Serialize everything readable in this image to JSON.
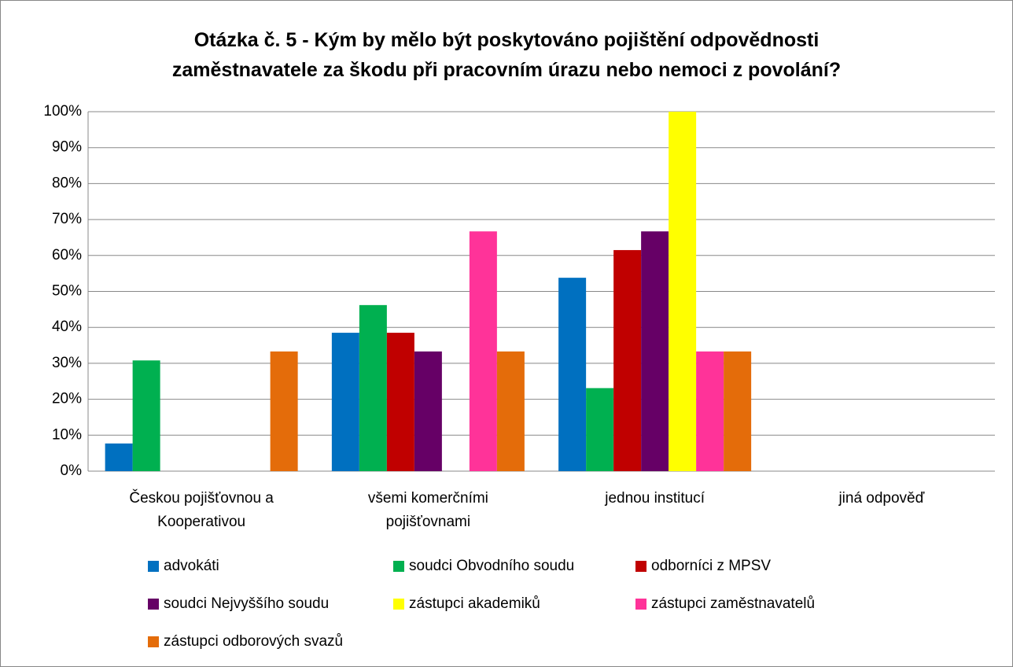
{
  "chart_data": {
    "type": "bar",
    "title": "Otázka č. 5 - Kým by mělo být poskytováno pojištění odpovědnosti zaměstnavatele za škodu při pracovním úrazu nebo nemoci z povolání?",
    "categories": [
      "Českou pojišťovnou a Kooperativou",
      "všemi komerčními pojišťovnami",
      "jednou institucí",
      "jiná odpověď"
    ],
    "series": [
      {
        "name": "advokáti",
        "color": "#0070c0",
        "values": [
          7.7,
          38.5,
          53.8,
          0
        ]
      },
      {
        "name": "soudci Obvodního soudu",
        "color": "#00b050",
        "values": [
          30.8,
          46.2,
          23.1,
          0
        ]
      },
      {
        "name": "odborníci z MPSV",
        "color": "#c00000",
        "values": [
          0,
          38.5,
          61.5,
          0
        ]
      },
      {
        "name": "soudci Nejvyššího soudu",
        "color": "#660066",
        "values": [
          0,
          33.3,
          66.7,
          0
        ]
      },
      {
        "name": "zástupci akademiků",
        "color": "#ffff00",
        "values": [
          0,
          0,
          100,
          0
        ]
      },
      {
        "name": "zástupci zaměstnavatelů",
        "color": "#ff3399",
        "values": [
          0,
          66.7,
          33.3,
          0
        ]
      },
      {
        "name": "zástupci odborových svazů",
        "color": "#e46c0a",
        "values": [
          33.3,
          33.3,
          33.3,
          0
        ]
      }
    ],
    "ylim": [
      0,
      100
    ],
    "yticks": [
      {
        "value": 0,
        "label": "0%"
      },
      {
        "value": 10,
        "label": "10%"
      },
      {
        "value": 20,
        "label": "20%"
      },
      {
        "value": 30,
        "label": "30%"
      },
      {
        "value": 40,
        "label": "40%"
      },
      {
        "value": 50,
        "label": "50%"
      },
      {
        "value": 60,
        "label": "60%"
      },
      {
        "value": 70,
        "label": "70%"
      },
      {
        "value": 80,
        "label": "80%"
      },
      {
        "value": 90,
        "label": "90%"
      },
      {
        "value": 100,
        "label": "100%"
      }
    ],
    "grid": true,
    "legend": "bottom"
  }
}
